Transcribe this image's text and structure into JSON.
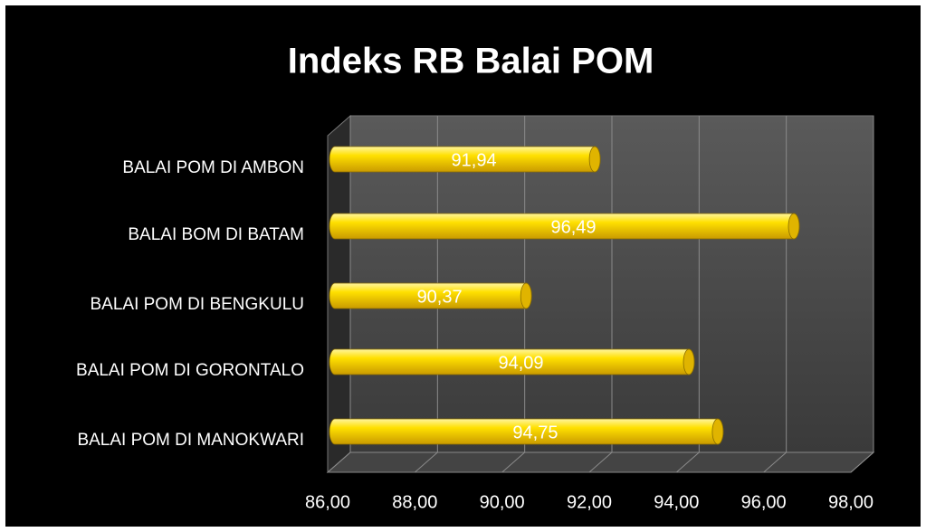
{
  "chart_data": {
    "type": "bar",
    "orientation": "horizontal",
    "title": "Indeks RB Balai POM",
    "categories": [
      "BALAI POM DI AMBON",
      "BALAI BOM DI BATAM",
      "BALAI POM DI BENGKULU",
      "BALAI POM DI GORONTALO",
      "BALAI POM DI MANOKWARI"
    ],
    "values": [
      91.94,
      96.49,
      90.37,
      94.09,
      94.75
    ],
    "value_labels": [
      "91,94",
      "96,49",
      "90,37",
      "94,09",
      "94,75"
    ],
    "color": "#ffd700",
    "xlim": [
      86,
      98
    ],
    "xticks": [
      {
        "value": 86,
        "label": "86,00"
      },
      {
        "value": 88,
        "label": "88,00"
      },
      {
        "value": 90,
        "label": "90,00"
      },
      {
        "value": 92,
        "label": "92,00"
      },
      {
        "value": 94,
        "label": "94,00"
      },
      {
        "value": 96,
        "label": "96,00"
      },
      {
        "value": 98,
        "label": "98,00"
      }
    ],
    "grid": true
  }
}
